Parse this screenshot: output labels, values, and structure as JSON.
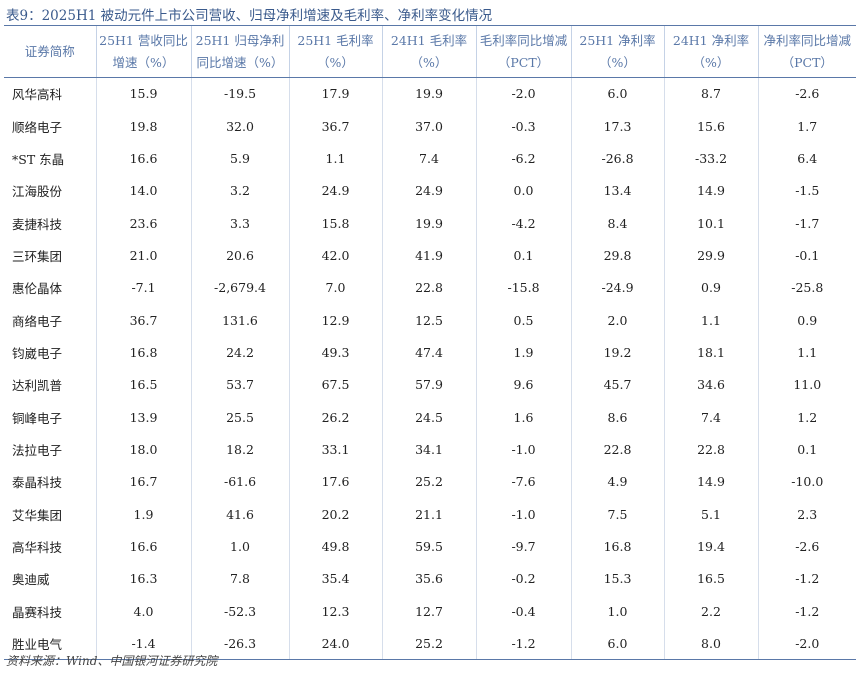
{
  "caption": "表9：2025H1 被动元件上市公司营收、归母净利增速及毛利率、净利率变化情况",
  "headers": [
    {
      "line1": "证券简称",
      "line2": ""
    },
    {
      "line1": "25H1 营收同比",
      "line2": "增速（%）"
    },
    {
      "line1": "25H1 归母净利",
      "line2": "同比增速（%）"
    },
    {
      "line1": "25H1 毛利率",
      "line2": "（%）"
    },
    {
      "line1": "24H1 毛利率",
      "line2": "（%）"
    },
    {
      "line1": "毛利率同比增减",
      "line2": "（PCT）"
    },
    {
      "line1": "25H1 净利率",
      "line2": "（%）"
    },
    {
      "line1": "24H1 净利率",
      "line2": "（%）"
    },
    {
      "line1": "净利率同比增减",
      "line2": "（PCT）"
    }
  ],
  "rows": [
    {
      "name": "风华高科",
      "v": [
        "15.9",
        "-19.5",
        "17.9",
        "19.9",
        "-2.0",
        "6.0",
        "8.7",
        "-2.6"
      ]
    },
    {
      "name": "顺络电子",
      "v": [
        "19.8",
        "32.0",
        "36.7",
        "37.0",
        "-0.3",
        "17.3",
        "15.6",
        "1.7"
      ]
    },
    {
      "name": "*ST 东晶",
      "v": [
        "16.6",
        "5.9",
        "1.1",
        "7.4",
        "-6.2",
        "-26.8",
        "-33.2",
        "6.4"
      ]
    },
    {
      "name": "江海股份",
      "v": [
        "14.0",
        "3.2",
        "24.9",
        "24.9",
        "0.0",
        "13.4",
        "14.9",
        "-1.5"
      ]
    },
    {
      "name": "麦捷科技",
      "v": [
        "23.6",
        "3.3",
        "15.8",
        "19.9",
        "-4.2",
        "8.4",
        "10.1",
        "-1.7"
      ]
    },
    {
      "name": "三环集团",
      "v": [
        "21.0",
        "20.6",
        "42.0",
        "41.9",
        "0.1",
        "29.8",
        "29.9",
        "-0.1"
      ]
    },
    {
      "name": "惠伦晶体",
      "v": [
        "-7.1",
        "-2,679.4",
        "7.0",
        "22.8",
        "-15.8",
        "-24.9",
        "0.9",
        "-25.8"
      ]
    },
    {
      "name": "商络电子",
      "v": [
        "36.7",
        "131.6",
        "12.9",
        "12.5",
        "0.5",
        "2.0",
        "1.1",
        "0.9"
      ]
    },
    {
      "name": "钧崴电子",
      "v": [
        "16.8",
        "24.2",
        "49.3",
        "47.4",
        "1.9",
        "19.2",
        "18.1",
        "1.1"
      ]
    },
    {
      "name": "达利凯普",
      "v": [
        "16.5",
        "53.7",
        "67.5",
        "57.9",
        "9.6",
        "45.7",
        "34.6",
        "11.0"
      ]
    },
    {
      "name": "铜峰电子",
      "v": [
        "13.9",
        "25.5",
        "26.2",
        "24.5",
        "1.6",
        "8.6",
        "7.4",
        "1.2"
      ]
    },
    {
      "name": "法拉电子",
      "v": [
        "18.0",
        "18.2",
        "33.1",
        "34.1",
        "-1.0",
        "22.8",
        "22.8",
        "0.1"
      ]
    },
    {
      "name": "泰晶科技",
      "v": [
        "16.7",
        "-61.6",
        "17.6",
        "25.2",
        "-7.6",
        "4.9",
        "14.9",
        "-10.0"
      ]
    },
    {
      "name": "艾华集团",
      "v": [
        "1.9",
        "41.6",
        "20.2",
        "21.1",
        "-1.0",
        "7.5",
        "5.1",
        "2.3"
      ]
    },
    {
      "name": "高华科技",
      "v": [
        "16.6",
        "1.0",
        "49.8",
        "59.5",
        "-9.7",
        "16.8",
        "19.4",
        "-2.6"
      ]
    },
    {
      "name": "奥迪威",
      "v": [
        "16.3",
        "7.8",
        "35.4",
        "35.6",
        "-0.2",
        "15.3",
        "16.5",
        "-1.2"
      ]
    },
    {
      "name": "晶赛科技",
      "v": [
        "4.0",
        "-52.3",
        "12.3",
        "12.7",
        "-0.4",
        "1.0",
        "2.2",
        "-1.2"
      ]
    },
    {
      "name": "胜业电气",
      "v": [
        "-1.4",
        "-26.3",
        "24.0",
        "25.2",
        "-1.2",
        "6.0",
        "8.0",
        "-2.0"
      ]
    }
  ],
  "source": "资料来源：Wind、中国银河证券研究院"
}
